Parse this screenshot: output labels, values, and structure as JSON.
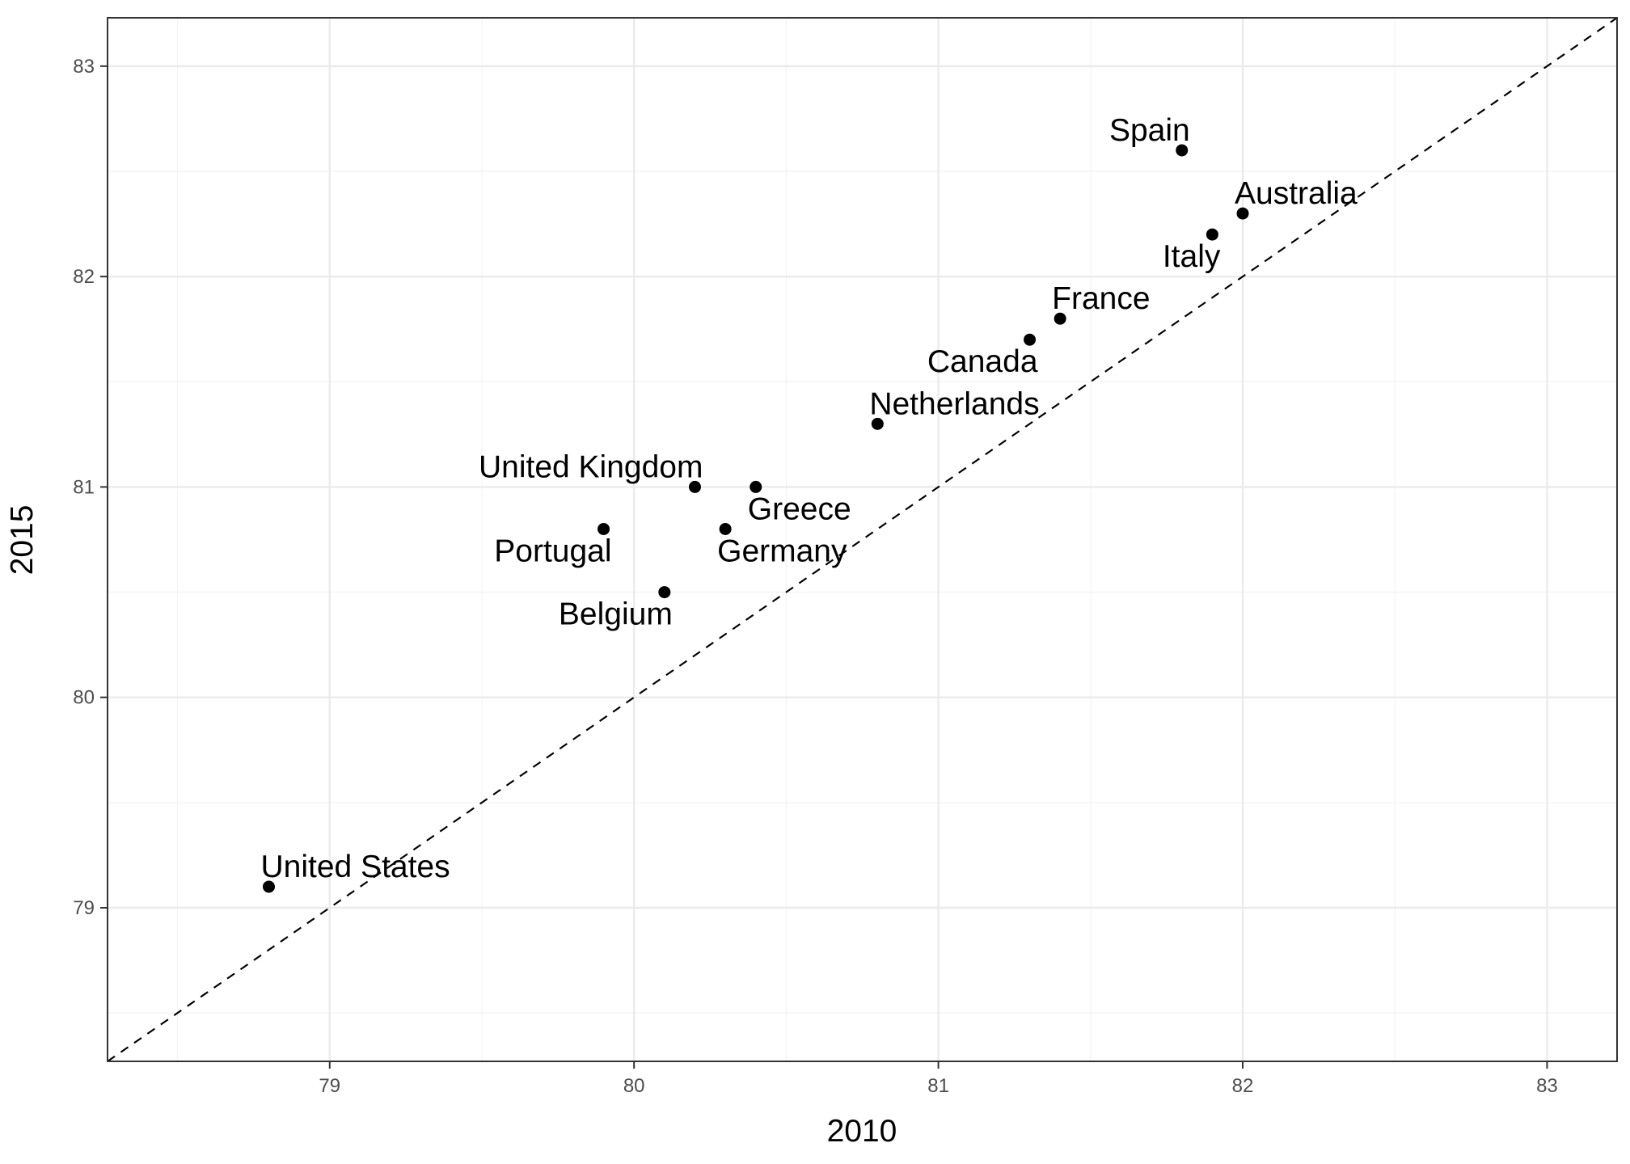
{
  "chart_data": {
    "type": "scatter",
    "xlabel": "2010",
    "ylabel": "2015",
    "xlim": [
      78.27,
      83.23
    ],
    "ylim": [
      78.27,
      83.23
    ],
    "x_ticks": [
      79,
      80,
      81,
      82,
      83
    ],
    "y_ticks": [
      79,
      80,
      81,
      82,
      83
    ],
    "grid": true,
    "reference_line": "y = x (dashed)",
    "points": [
      {
        "label": "Spain",
        "x": 81.8,
        "y": 82.6,
        "label_pos": "above-left"
      },
      {
        "label": "Australia",
        "x": 82.0,
        "y": 82.3,
        "label_pos": "above-right"
      },
      {
        "label": "Italy",
        "x": 81.9,
        "y": 82.2,
        "label_pos": "below-left"
      },
      {
        "label": "France",
        "x": 81.4,
        "y": 81.8,
        "label_pos": "above-right"
      },
      {
        "label": "Canada",
        "x": 81.3,
        "y": 81.7,
        "label_pos": "below-left"
      },
      {
        "label": "Netherlands",
        "x": 80.8,
        "y": 81.3,
        "label_pos": "above-right"
      },
      {
        "label": "United Kingdom",
        "x": 80.2,
        "y": 81.0,
        "label_pos": "above-left"
      },
      {
        "label": "Greece",
        "x": 80.4,
        "y": 81.0,
        "label_pos": "below-right"
      },
      {
        "label": "Portugal",
        "x": 79.9,
        "y": 80.8,
        "label_pos": "below-left"
      },
      {
        "label": "Germany",
        "x": 80.3,
        "y": 80.8,
        "label_pos": "below-right"
      },
      {
        "label": "Belgium",
        "x": 80.1,
        "y": 80.5,
        "label_pos": "below-left"
      },
      {
        "label": "United States",
        "x": 78.8,
        "y": 79.1,
        "label_pos": "above-right"
      }
    ]
  },
  "colors": {
    "point": "#000000",
    "grid_major": "#ebebeb",
    "grid_minor": "#f3f3f3",
    "panel_border": "#333333",
    "tick_text": "#4d4d4d"
  }
}
